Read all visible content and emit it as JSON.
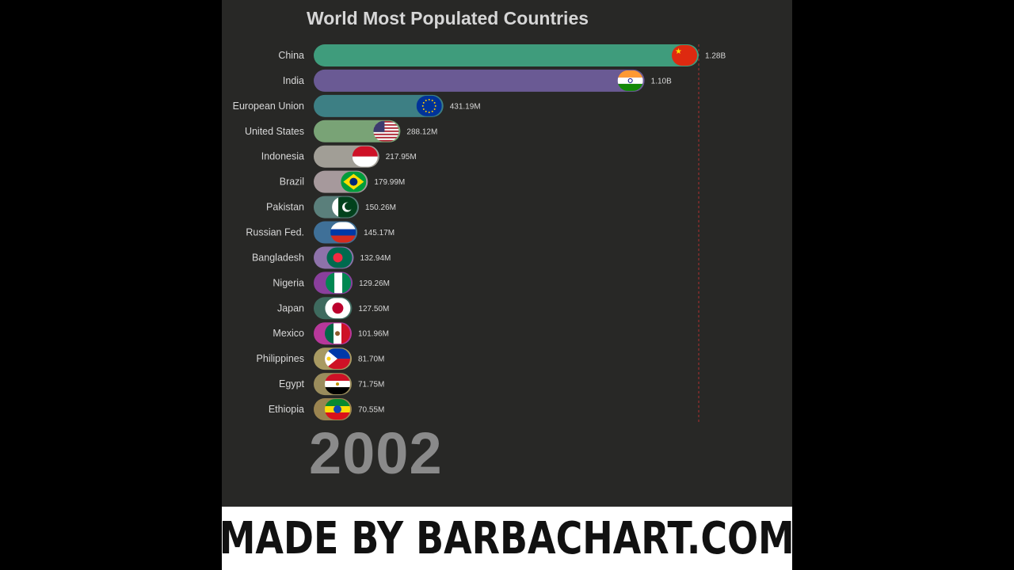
{
  "footer": {
    "text": "MADE BY BARBACHART.COM"
  },
  "chart_data": {
    "type": "bar",
    "orientation": "horizontal",
    "title": "World Most Populated Countries",
    "period_label": "2002",
    "grid": false,
    "categories": [
      "China",
      "India",
      "European Union",
      "United States",
      "Indonesia",
      "Brazil",
      "Pakistan",
      "Russian Fed.",
      "Bangladesh",
      "Nigeria",
      "Japan",
      "Mexico",
      "Philippines",
      "Egypt",
      "Ethiopia"
    ],
    "values": [
      1280000000,
      1100000000,
      431190000,
      288120000,
      217950000,
      179990000,
      150260000,
      145170000,
      132940000,
      129260000,
      127500000,
      101960000,
      81700000,
      71750000,
      70550000
    ],
    "value_labels": [
      "1.28B",
      "1.10B",
      "431.19M",
      "288.12M",
      "217.95M",
      "179.99M",
      "150.26M",
      "145.17M",
      "132.94M",
      "129.26M",
      "127.50M",
      "101.96M",
      "81.70M",
      "71.75M",
      "70.55M"
    ],
    "colors": [
      "#3f9c7c",
      "#6a5a94",
      "#3d7f84",
      "#79a376",
      "#a19e96",
      "#a6999c",
      "#5a7f7b",
      "#3f7098",
      "#8e72aa",
      "#8a3f9c",
      "#3e6a5e",
      "#b7389a",
      "#a89a62",
      "#9a8c5c",
      "#9a8450"
    ],
    "flags": [
      "china-flag-icon",
      "india-flag-icon",
      "eu-flag-icon",
      "usa-flag-icon",
      "indonesia-flag-icon",
      "brazil-flag-icon",
      "pakistan-flag-icon",
      "russia-flag-icon",
      "bangladesh-flag-icon",
      "nigeria-flag-icon",
      "japan-flag-icon",
      "mexico-flag-icon",
      "philippines-flag-icon",
      "egypt-flag-icon",
      "ethiopia-flag-icon"
    ],
    "xlim": [
      0,
      1280000000
    ]
  }
}
